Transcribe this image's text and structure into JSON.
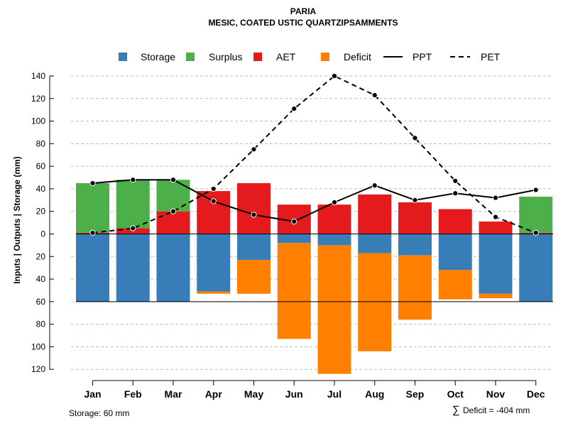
{
  "chart_data": {
    "type": "bar",
    "title": "PARIA",
    "subtitle": "MESIC, COATED USTIC QUARTZIPSAMMENTS",
    "ylabel": "Inputs | Outputs | Storage    (mm)",
    "categories": [
      "Jan",
      "Feb",
      "Mar",
      "Apr",
      "May",
      "Jun",
      "Jul",
      "Aug",
      "Sep",
      "Oct",
      "Nov",
      "Dec"
    ],
    "yticks": [
      140,
      120,
      100,
      80,
      60,
      40,
      20,
      0,
      -20,
      -40,
      -60,
      -80,
      -100,
      -120
    ],
    "ytick_labels": [
      "140",
      "120",
      "100",
      "80",
      "60",
      "40",
      "20",
      "0",
      "20",
      "40",
      "60",
      "80",
      "100",
      "120"
    ],
    "ylim": [
      -125,
      140
    ],
    "grid": true,
    "legend_position": "top",
    "series": [
      {
        "name": "Storage",
        "color": "#377EB8",
        "values": [
          -60,
          -60,
          -60,
          -51,
          -23,
          -8,
          -10,
          -17,
          -19,
          -32,
          -53,
          -60
        ]
      },
      {
        "name": "Surplus",
        "color": "#4DAF4A",
        "values": [
          44,
          43,
          28,
          0,
          0,
          0,
          0,
          0,
          0,
          0,
          0,
          32
        ]
      },
      {
        "name": "AET",
        "color": "#E41A1C",
        "values": [
          1,
          5,
          20,
          38,
          45,
          26,
          26,
          35,
          28,
          22,
          11,
          1
        ]
      },
      {
        "name": "Deficit",
        "color": "#FF7F00",
        "values": [
          0,
          0,
          0,
          -2,
          -30,
          -85,
          -114,
          -87,
          -57,
          -26,
          -4,
          0
        ]
      },
      {
        "name": "PPT",
        "style": "solid",
        "values": [
          45,
          48,
          48,
          29,
          17,
          11,
          28,
          43,
          30,
          36,
          32,
          39
        ]
      },
      {
        "name": "PET",
        "style": "dashed",
        "values": [
          1,
          5,
          20,
          40,
          75,
          111,
          140,
          123,
          85,
          47,
          15,
          1
        ]
      }
    ],
    "storage_capacity": -60,
    "annotations": {
      "storage": "Storage: 60 mm",
      "deficit_symbol": "∑",
      "deficit": "Deficit = -404 mm"
    }
  }
}
